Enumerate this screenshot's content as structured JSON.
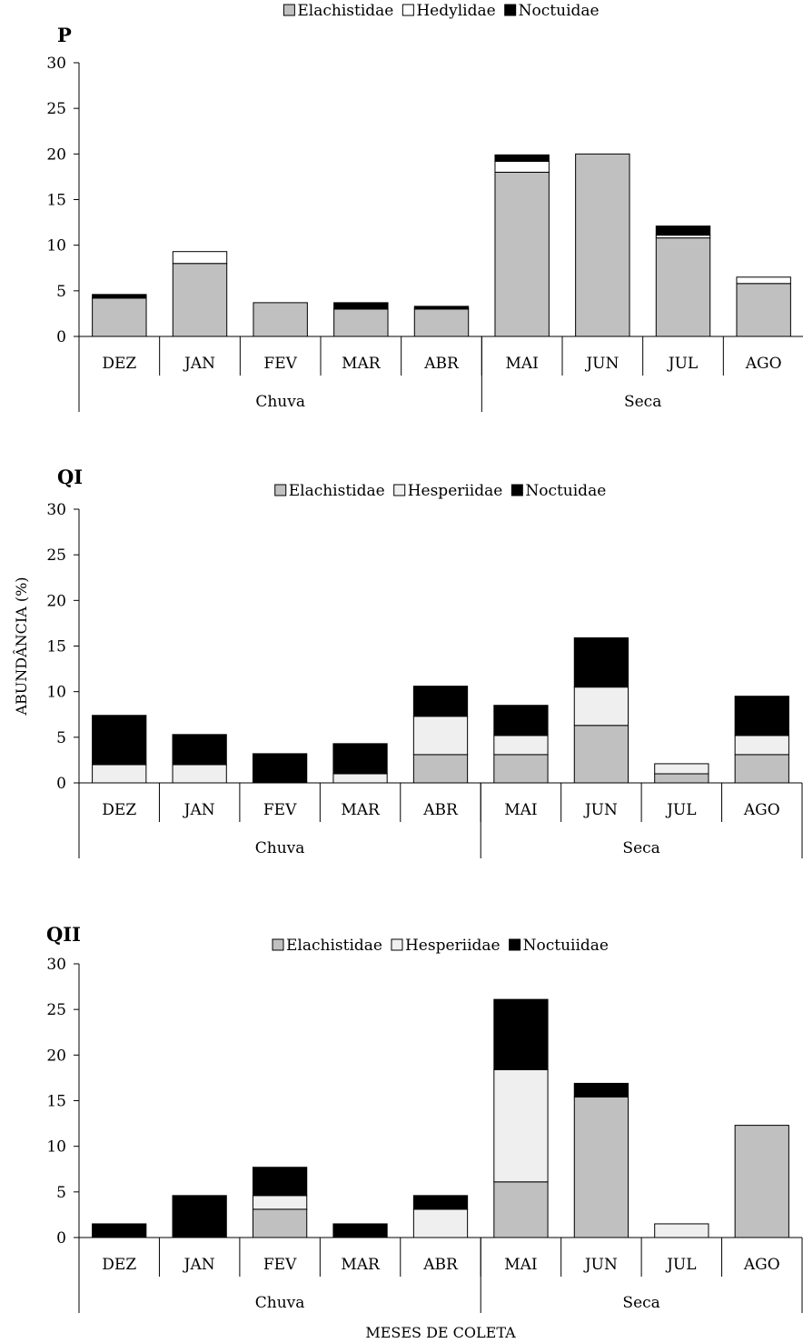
{
  "colors": {
    "elachistidae": "#c0c0c0",
    "hedylidae": "#ffffff",
    "hesperiidae": "#efefef",
    "noctuidae": "#000000",
    "axis": "#000000"
  },
  "chart_data": [
    {
      "type": "bar",
      "stacked": true,
      "panel": "P",
      "title": "P",
      "ylim": [
        0,
        30
      ],
      "yticks": [
        "0",
        "5",
        "10",
        "15",
        "20",
        "25",
        "30"
      ],
      "categories": [
        "DEZ",
        "JAN",
        "FEV",
        "MAR",
        "ABR",
        "MAI",
        "JUN",
        "JUL",
        "AGO"
      ],
      "groups": [
        {
          "label": "Chuva",
          "span": [
            0,
            4
          ]
        },
        {
          "label": "Seca",
          "span": [
            5,
            8
          ]
        }
      ],
      "legend_position": "top-center",
      "series": [
        {
          "name": "Elachistidae",
          "color_key": "elachistidae",
          "values": [
            4.2,
            8.0,
            3.7,
            3.0,
            3.0,
            18.0,
            20.0,
            10.8,
            5.8
          ]
        },
        {
          "name": "Hedylidae",
          "color_key": "hedylidae",
          "values": [
            0,
            1.3,
            0,
            0,
            0,
            1.2,
            0,
            0.3,
            0.7
          ]
        },
        {
          "name": "Noctuidae",
          "color_key": "noctuidae",
          "values": [
            0.4,
            0,
            0,
            0.7,
            0.3,
            0.7,
            0,
            1.0,
            0
          ]
        }
      ]
    },
    {
      "type": "bar",
      "stacked": true,
      "panel": "QI",
      "title": "QI",
      "ylabel": "ABUNDÂNCIA (%)",
      "ylim": [
        0,
        30
      ],
      "yticks": [
        "0",
        "5",
        "10",
        "15",
        "20",
        "25",
        "30"
      ],
      "categories": [
        "DEZ",
        "JAN",
        "FEV",
        "MAR",
        "ABR",
        "MAI",
        "JUN",
        "JUL",
        "AGO"
      ],
      "groups": [
        {
          "label": "Chuva",
          "span": [
            0,
            4
          ]
        },
        {
          "label": "Seca",
          "span": [
            5,
            8
          ]
        }
      ],
      "legend_position": "top-center",
      "series": [
        {
          "name": "Elachistidae",
          "color_key": "elachistidae",
          "values": [
            0,
            0,
            0,
            0,
            3.1,
            3.1,
            6.3,
            1.0,
            3.1
          ]
        },
        {
          "name": "Hesperiidae",
          "color_key": "hesperiidae",
          "values": [
            2.0,
            2.0,
            0,
            1.0,
            4.2,
            2.1,
            4.2,
            1.1,
            2.1
          ]
        },
        {
          "name": "Noctuidae",
          "color_key": "noctuidae",
          "values": [
            5.4,
            3.3,
            3.2,
            3.3,
            3.3,
            3.3,
            5.4,
            0,
            4.3
          ]
        }
      ]
    },
    {
      "type": "bar",
      "stacked": true,
      "panel": "QII",
      "title": "QII",
      "xlabel": "MESES DE COLETA",
      "ylim": [
        0,
        30
      ],
      "yticks": [
        "0",
        "5",
        "10",
        "15",
        "20",
        "25",
        "30"
      ],
      "categories": [
        "DEZ",
        "JAN",
        "FEV",
        "MAR",
        "ABR",
        "MAI",
        "JUN",
        "JUL",
        "AGO"
      ],
      "groups": [
        {
          "label": "Chuva",
          "span": [
            0,
            4
          ]
        },
        {
          "label": "Seca",
          "span": [
            5,
            8
          ]
        }
      ],
      "legend_position": "top-center",
      "series": [
        {
          "name": "Elachistidae",
          "color_key": "elachistidae",
          "values": [
            0,
            0,
            3.1,
            0,
            0,
            6.1,
            15.4,
            0,
            12.3
          ]
        },
        {
          "name": "Hesperiidae",
          "color_key": "hesperiidae",
          "values": [
            0,
            0,
            1.5,
            0,
            3.1,
            12.3,
            0,
            1.5,
            0
          ]
        },
        {
          "name": "Noctuiidae",
          "color_key": "noctuidae",
          "values": [
            1.5,
            4.6,
            3.1,
            1.5,
            1.5,
            7.7,
            1.5,
            0,
            0
          ]
        }
      ]
    }
  ]
}
